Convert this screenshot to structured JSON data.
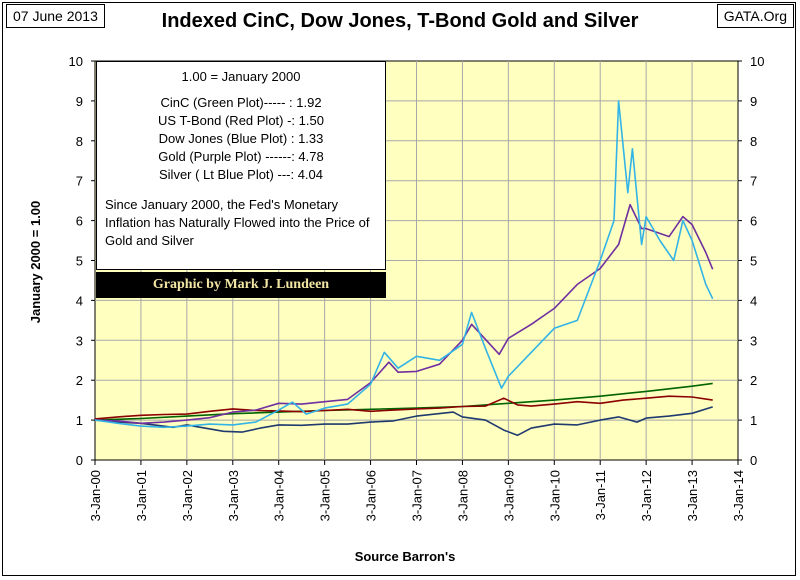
{
  "header": {
    "date": "07 June 2013",
    "source": "GATA.Org"
  },
  "legend": {
    "heading": "1.00 = January 2000",
    "entries": [
      "CinC (Green Plot)----- : 1.92",
      "US T-Bond (Red Plot) -: 1.50",
      "Dow Jones (Blue Plot) : 1.33",
      "Gold (Purple Plot) ------: 4.78",
      "Silver ( Lt Blue Plot) ---: 4.04"
    ],
    "note": "Since January 2000, the Fed's Monetary Inflation has Naturally Flowed into the Price of Gold and Silver",
    "credit": "Graphic by Mark J. Lundeen"
  },
  "colors": {
    "plot_background": "#ffffc0",
    "gridline": "#a8a8a8",
    "cinc": "#006400",
    "tbond": "#8b0000",
    "dow": "#1f3a6e",
    "gold": "#7030a0",
    "silver": "#33b4e6"
  },
  "chart_data": {
    "type": "line",
    "title": "Indexed CinC, Dow Jones, T-Bond Gold and Silver",
    "xlabel": "Source Barron's",
    "ylabel": "January 2000 = 1.00",
    "x_tick_labels": [
      "3-Jan-00",
      "3-Jan-01",
      "3-Jan-02",
      "3-Jan-03",
      "3-Jan-04",
      "3-Jan-05",
      "3-Jan-06",
      "3-Jan-07",
      "3-Jan-08",
      "3-Jan-09",
      "3-Jan-10",
      "3-Jan-11",
      "3-Jan-12",
      "3-Jan-13",
      "3-Jan-14"
    ],
    "xlim": [
      2000,
      2014
    ],
    "ylim": [
      0,
      10
    ],
    "y_ticks": [
      0,
      1,
      2,
      3,
      4,
      5,
      6,
      7,
      8,
      9,
      10
    ],
    "grid": true,
    "series": [
      {
        "name": "CinC (Green Plot)",
        "x": [
          2000,
          2001,
          2002,
          2003,
          2004,
          2005,
          2006,
          2007,
          2008,
          2009,
          2010,
          2011,
          2012,
          2013,
          2013.45
        ],
        "y": [
          1.0,
          1.04,
          1.1,
          1.16,
          1.2,
          1.24,
          1.27,
          1.3,
          1.34,
          1.42,
          1.5,
          1.6,
          1.72,
          1.85,
          1.92
        ]
      },
      {
        "name": "US T-Bond (Red Plot)",
        "x": [
          2000,
          2000.5,
          2001,
          2001.5,
          2002,
          2002.5,
          2003,
          2003.5,
          2004,
          2004.5,
          2005,
          2005.5,
          2006,
          2006.5,
          2007,
          2007.5,
          2008,
          2008.5,
          2008.9,
          2009.2,
          2009.5,
          2010,
          2010.5,
          2011,
          2011.5,
          2012,
          2012.5,
          2013,
          2013.45
        ],
        "y": [
          1.03,
          1.08,
          1.12,
          1.14,
          1.15,
          1.22,
          1.28,
          1.24,
          1.23,
          1.21,
          1.24,
          1.27,
          1.22,
          1.25,
          1.28,
          1.3,
          1.34,
          1.35,
          1.55,
          1.38,
          1.35,
          1.4,
          1.46,
          1.42,
          1.5,
          1.55,
          1.6,
          1.58,
          1.5
        ]
      },
      {
        "name": "Dow Jones (Blue Plot)",
        "x": [
          2000,
          2000.5,
          2001,
          2001.7,
          2002,
          2002.5,
          2002.8,
          2003.2,
          2003.6,
          2004,
          2004.5,
          2005,
          2005.5,
          2006,
          2006.5,
          2007,
          2007.8,
          2008,
          2008.5,
          2008.9,
          2009.2,
          2009.5,
          2010,
          2010.5,
          2011,
          2011.4,
          2011.8,
          2012,
          2012.5,
          2013,
          2013.45
        ],
        "y": [
          1.0,
          0.95,
          0.92,
          0.82,
          0.88,
          0.78,
          0.72,
          0.7,
          0.8,
          0.88,
          0.87,
          0.9,
          0.9,
          0.95,
          0.98,
          1.1,
          1.2,
          1.08,
          1.0,
          0.75,
          0.62,
          0.8,
          0.9,
          0.88,
          1.0,
          1.08,
          0.95,
          1.05,
          1.1,
          1.17,
          1.33
        ]
      },
      {
        "name": "Gold (Purple Plot)",
        "x": [
          2000,
          2000.5,
          2001,
          2001.5,
          2002,
          2002.5,
          2003,
          2003.5,
          2004,
          2004.5,
          2005,
          2005.5,
          2006,
          2006.4,
          2006.6,
          2007,
          2007.5,
          2008,
          2008.2,
          2008.8,
          2009,
          2009.5,
          2010,
          2010.5,
          2011,
          2011.4,
          2011.65,
          2011.9,
          2012,
          2012.5,
          2012.8,
          2013,
          2013.3,
          2013.45
        ],
        "y": [
          1.0,
          0.98,
          0.92,
          0.95,
          1.0,
          1.06,
          1.2,
          1.25,
          1.42,
          1.4,
          1.46,
          1.52,
          1.94,
          2.45,
          2.2,
          2.22,
          2.4,
          3.0,
          3.4,
          2.65,
          3.05,
          3.4,
          3.8,
          4.4,
          4.8,
          5.4,
          6.4,
          5.8,
          5.8,
          5.6,
          6.1,
          5.9,
          5.2,
          4.78
        ]
      },
      {
        "name": "Silver ( Lt Blue Plot)",
        "x": [
          2000,
          2000.5,
          2001,
          2001.5,
          2002,
          2002.5,
          2003,
          2003.5,
          2004,
          2004.3,
          2004.6,
          2005,
          2005.5,
          2006,
          2006.3,
          2006.6,
          2007,
          2007.5,
          2008,
          2008.2,
          2008.5,
          2008.85,
          2009,
          2009.5,
          2010,
          2010.5,
          2011,
          2011.3,
          2011.4,
          2011.6,
          2011.7,
          2011.9,
          2012,
          2012.3,
          2012.6,
          2012.8,
          2013,
          2013.3,
          2013.45
        ],
        "y": [
          1.0,
          0.92,
          0.85,
          0.82,
          0.85,
          0.9,
          0.88,
          0.95,
          1.25,
          1.45,
          1.15,
          1.3,
          1.4,
          1.9,
          2.7,
          2.3,
          2.6,
          2.5,
          2.9,
          3.7,
          2.8,
          1.8,
          2.1,
          2.7,
          3.3,
          3.5,
          5.0,
          6.0,
          9.0,
          6.7,
          7.8,
          5.4,
          6.1,
          5.5,
          5.0,
          6.0,
          5.5,
          4.4,
          4.04
        ]
      }
    ]
  }
}
